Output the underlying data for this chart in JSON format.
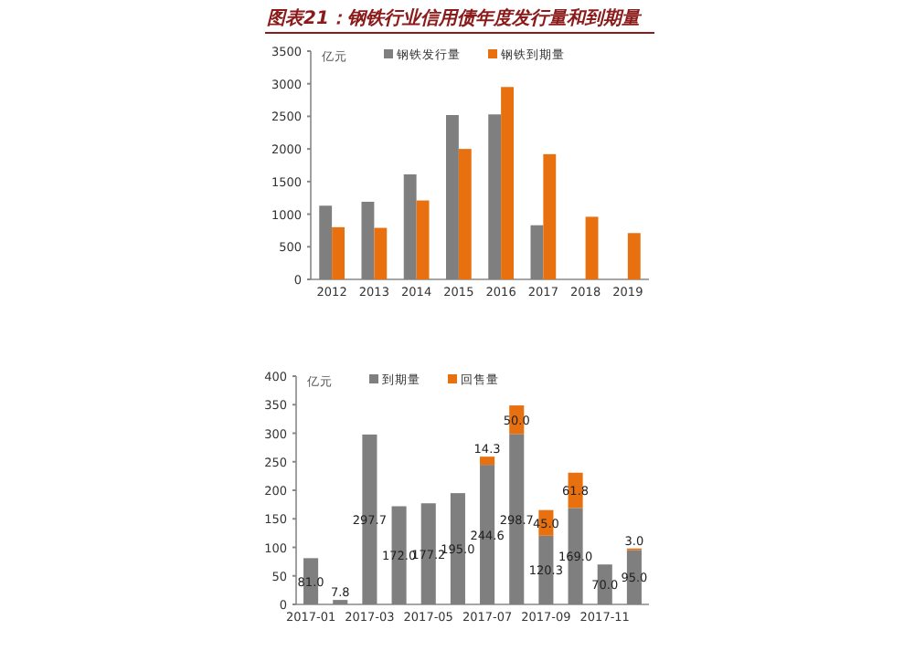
{
  "chart_data": [
    {
      "type": "bar",
      "title": "图表21：钢铁行业信用债年度发行量和到期量",
      "ylabel": "亿元",
      "categories": [
        "2012",
        "2013",
        "2014",
        "2015",
        "2016",
        "2017",
        "2018",
        "2019"
      ],
      "series": [
        {
          "name": "钢铁发行量",
          "color": "#7f7f7f",
          "values": [
            1130,
            1190,
            1610,
            2520,
            2530,
            830,
            null,
            null
          ]
        },
        {
          "name": "钢铁到期量",
          "color": "#e8700f",
          "values": [
            800,
            790,
            1210,
            2000,
            2950,
            1920,
            960,
            710
          ]
        }
      ],
      "ylim": [
        0,
        3500
      ],
      "yticks": [
        0,
        500,
        1000,
        1500,
        2000,
        2500,
        3000,
        3500
      ],
      "legend": "top",
      "grid": false
    },
    {
      "type": "bar",
      "stacked": true,
      "ylabel": "亿元",
      "categories": [
        "2017-01",
        null,
        "2017-03",
        null,
        "2017-05",
        null,
        "2017-07",
        null,
        "2017-09",
        null,
        "2017-11",
        null
      ],
      "series": [
        {
          "name": "到期量",
          "color": "#7f7f7f",
          "values": [
            81.0,
            7.8,
            297.7,
            172.0,
            177.2,
            195.0,
            244.6,
            298.7,
            120.3,
            169.0,
            70.0,
            95.0
          ],
          "value_labels": [
            "81.0",
            "7.8",
            "297.7",
            "172.0",
            "177.2",
            "195.0",
            "244.6",
            "298.7",
            "120.3",
            "169.0",
            "70.0",
            "95.0"
          ]
        },
        {
          "name": "回售量",
          "color": "#e8700f",
          "values": [
            null,
            null,
            null,
            null,
            null,
            null,
            14.3,
            50.0,
            45.0,
            61.8,
            null,
            3.0
          ],
          "value_labels": [
            null,
            null,
            null,
            null,
            null,
            null,
            "14.3",
            "50.0",
            "45.0",
            "61.8",
            null,
            "3.0"
          ]
        }
      ],
      "ylim": [
        0,
        400
      ],
      "yticks": [
        0,
        50,
        100,
        150,
        200,
        250,
        300,
        350,
        400
      ],
      "legend": "top",
      "grid": false
    }
  ]
}
